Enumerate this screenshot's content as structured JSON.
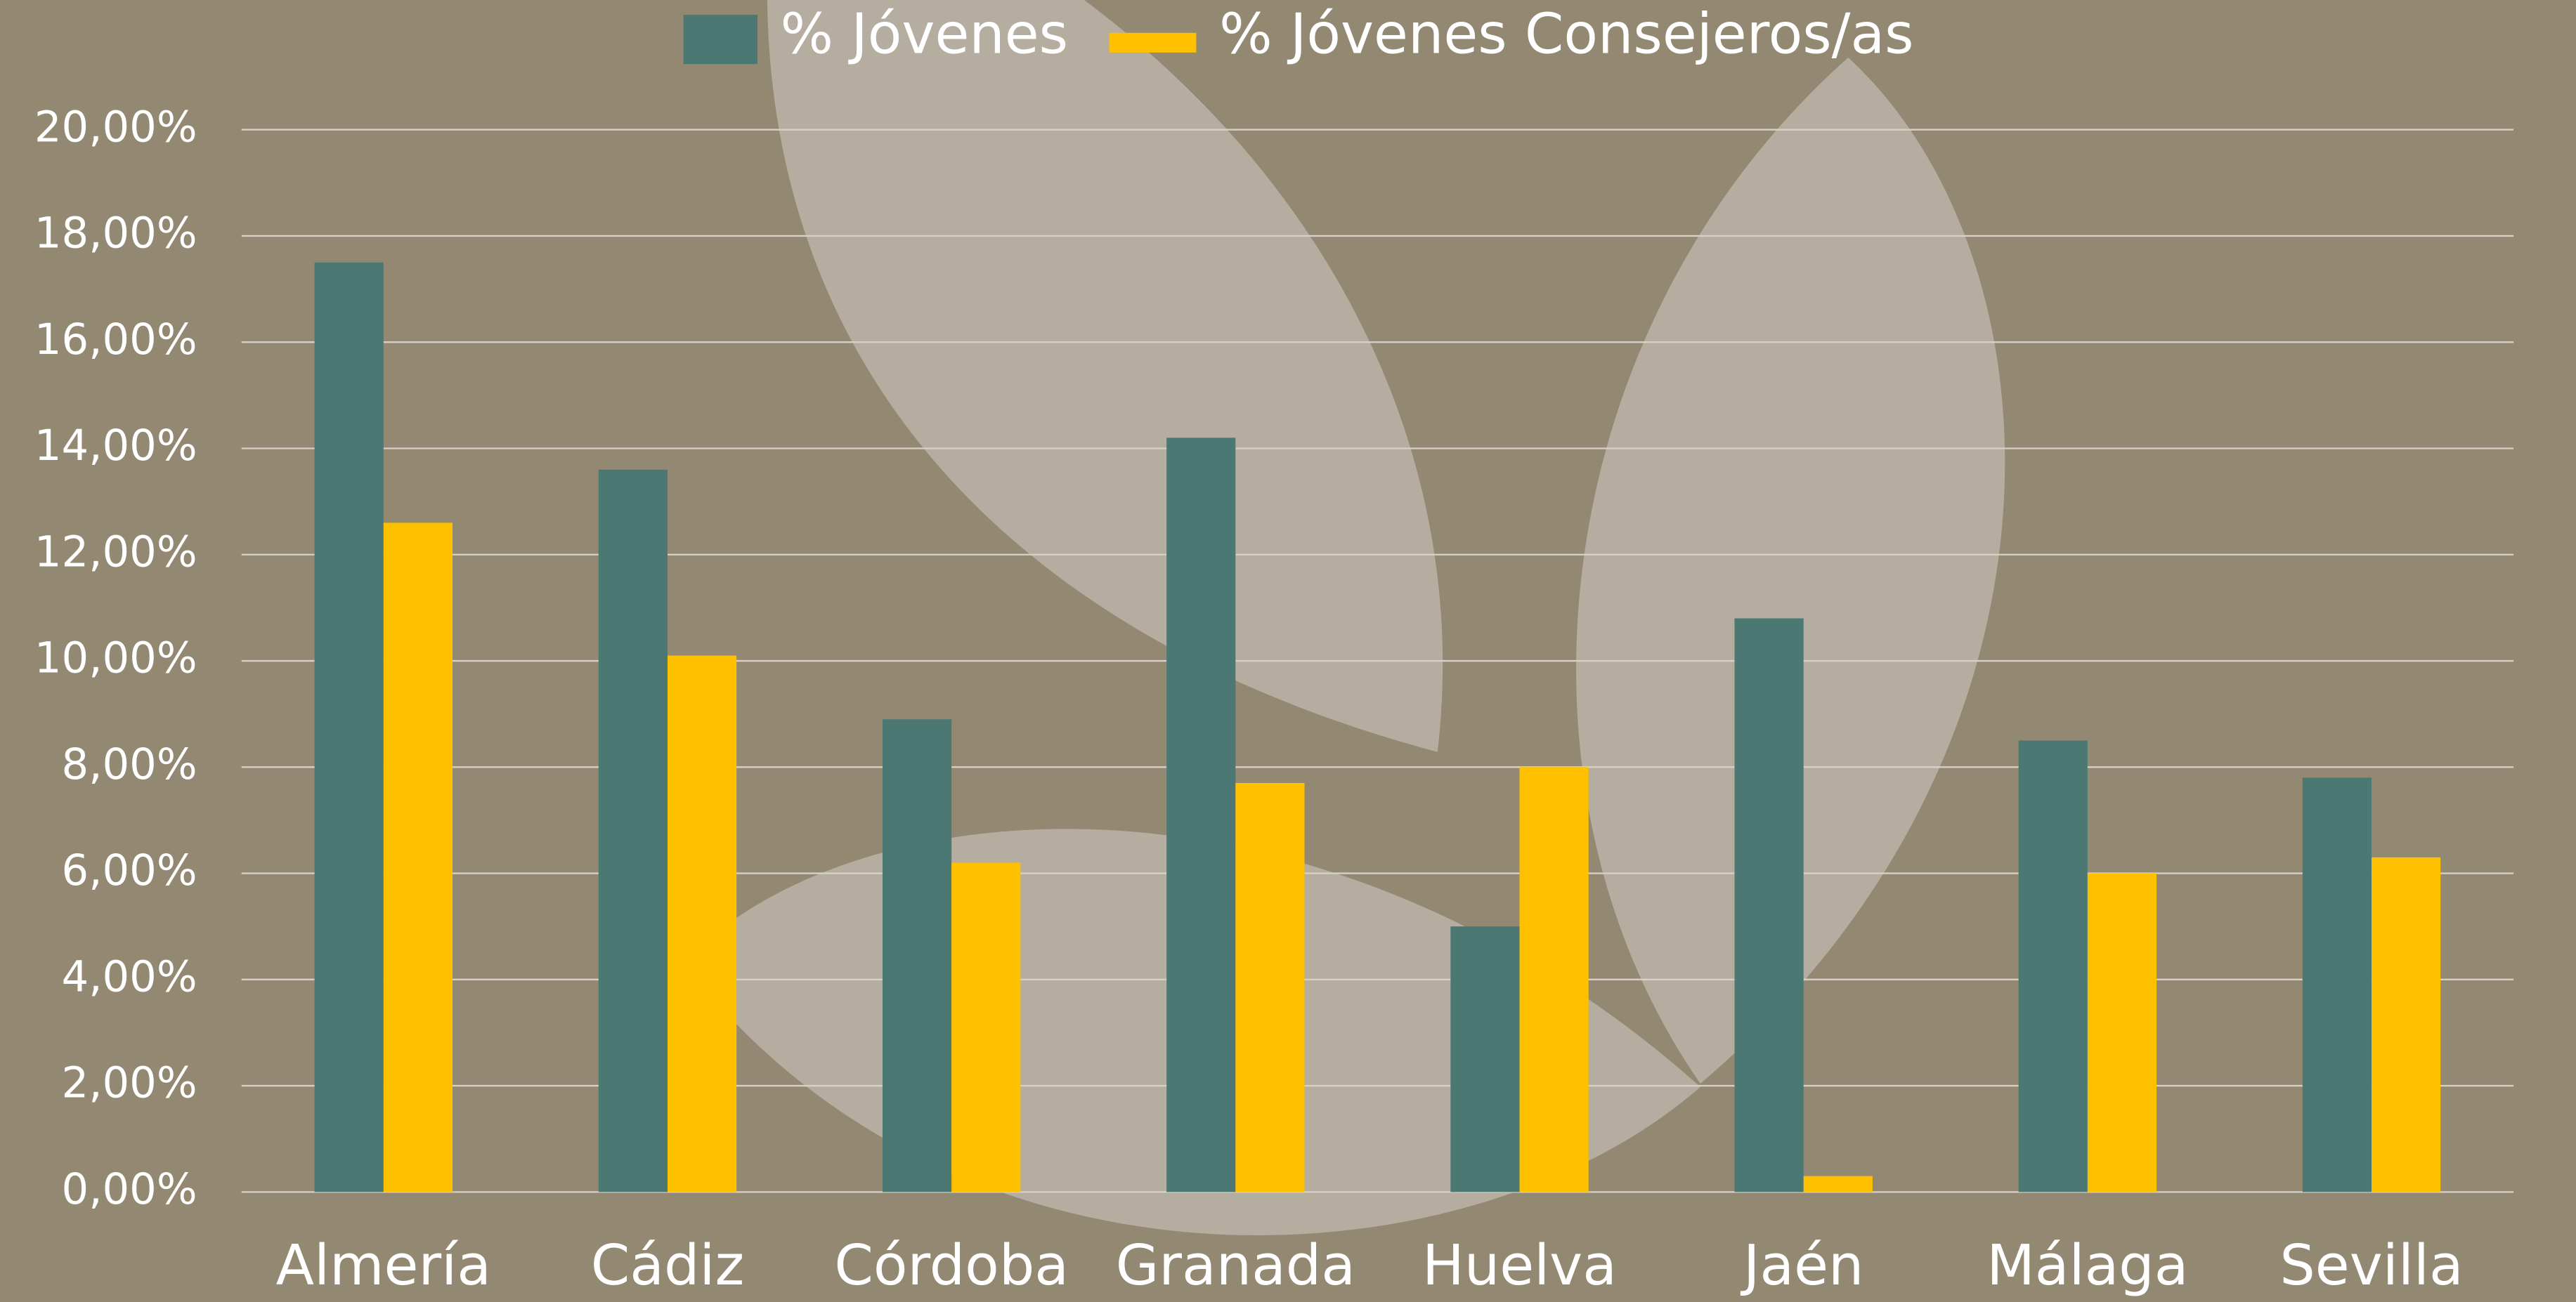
{
  "chart_data": {
    "type": "bar",
    "categories": [
      "Almería",
      "Cádiz",
      "Córdoba",
      "Granada",
      "Huelva",
      "Jaén",
      "Málaga",
      "Sevilla"
    ],
    "series": [
      {
        "name": "% Jóvenes",
        "color": "#4b7872",
        "values": [
          17.5,
          13.6,
          8.9,
          14.2,
          5.0,
          10.8,
          8.5,
          7.8
        ]
      },
      {
        "name": "% Jóvenes Consejeros/as",
        "color": "#ffc000",
        "values": [
          12.6,
          10.1,
          6.2,
          7.7,
          8.0,
          0.3,
          6.0,
          6.3
        ]
      }
    ],
    "ylim": [
      0,
      20
    ],
    "yticks": [
      {
        "value": 0,
        "label": "0,00%"
      },
      {
        "value": 2,
        "label": "2,00%"
      },
      {
        "value": 4,
        "label": "4,00%"
      },
      {
        "value": 6,
        "label": "6,00%"
      },
      {
        "value": 8,
        "label": "8,00%"
      },
      {
        "value": 10,
        "label": "10,00%"
      },
      {
        "value": 12,
        "label": "12,00%"
      },
      {
        "value": 14,
        "label": "14,00%"
      },
      {
        "value": 16,
        "label": "16,00%"
      },
      {
        "value": 18,
        "label": "18,00%"
      },
      {
        "value": 20,
        "label": "20,00%"
      }
    ],
    "grid": true,
    "legend": "top"
  }
}
